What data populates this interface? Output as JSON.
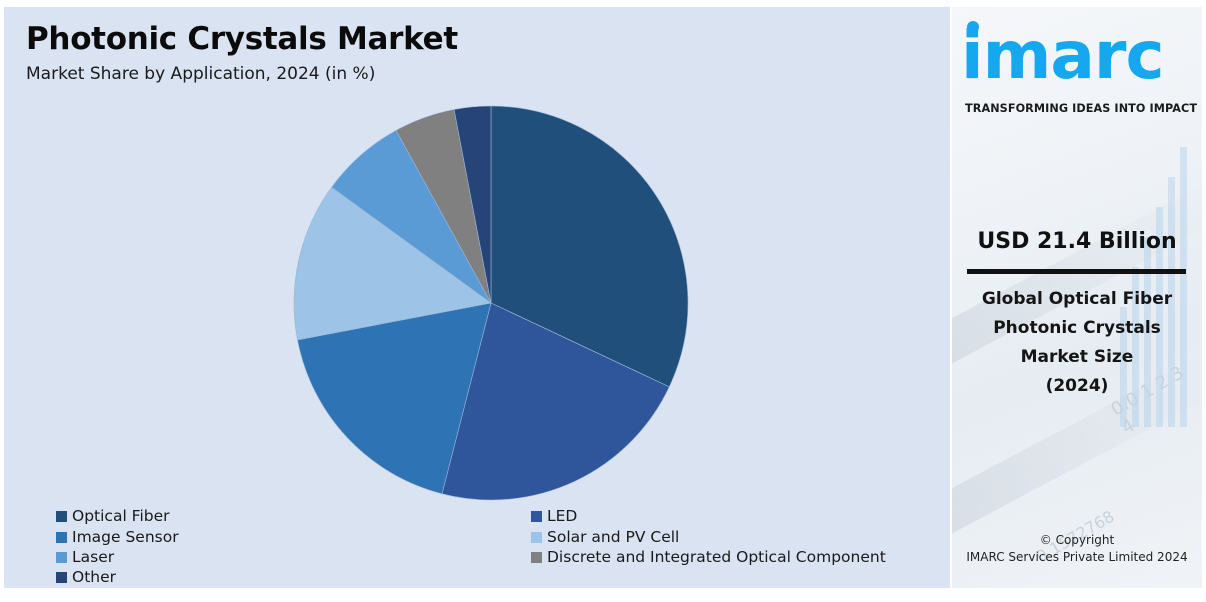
{
  "header": {
    "title": "Photonic Crystals Market",
    "subtitle": "Market Share by Application, 2024 (in %)"
  },
  "chart_data": {
    "type": "pie",
    "title": "Photonic Crystals Market",
    "subtitle": "Market Share by Application, 2024 (in %)",
    "start_angle_deg": 0,
    "direction": "clockwise",
    "categories": [
      "Optical Fiber",
      "LED",
      "Image Sensor",
      "Solar and PV Cell",
      "Laser",
      "Discrete and Integrated Optical Component",
      "Other"
    ],
    "values": [
      32,
      22,
      18,
      13,
      7,
      5,
      3
    ],
    "colors": [
      "#214f7c",
      "#2f569b",
      "#2e74b5",
      "#9dc3e6",
      "#5b9bd5",
      "#808080",
      "#264478"
    ],
    "legend_position": "bottom",
    "data_labels": false
  },
  "legend": [
    {
      "label": "Optical Fiber",
      "color": "#214f7c"
    },
    {
      "label": "LED",
      "color": "#2f569b"
    },
    {
      "label": "Image Sensor",
      "color": "#2e74b5"
    },
    {
      "label": "Solar and PV Cell",
      "color": "#9dc3e6"
    },
    {
      "label": "Laser",
      "color": "#5b9bd5"
    },
    {
      "label": "Discrete and Integrated Optical Component",
      "color": "#808080"
    },
    {
      "label": "Other",
      "color": "#264478"
    }
  ],
  "sidebar": {
    "logo_text": "imarc",
    "tagline": "TRANSFORMING IDEAS INTO IMPACT",
    "stat_value": "USD 21.4 Billion",
    "stat_desc_lines": [
      "Global Optical Fiber",
      "Photonic Crystals",
      "Market Size",
      "(2024)"
    ],
    "copyright_line1": "© Copyright",
    "copyright_line2": "IMARC Services Private Limited 2024",
    "brand_color": "#16a8ef"
  }
}
